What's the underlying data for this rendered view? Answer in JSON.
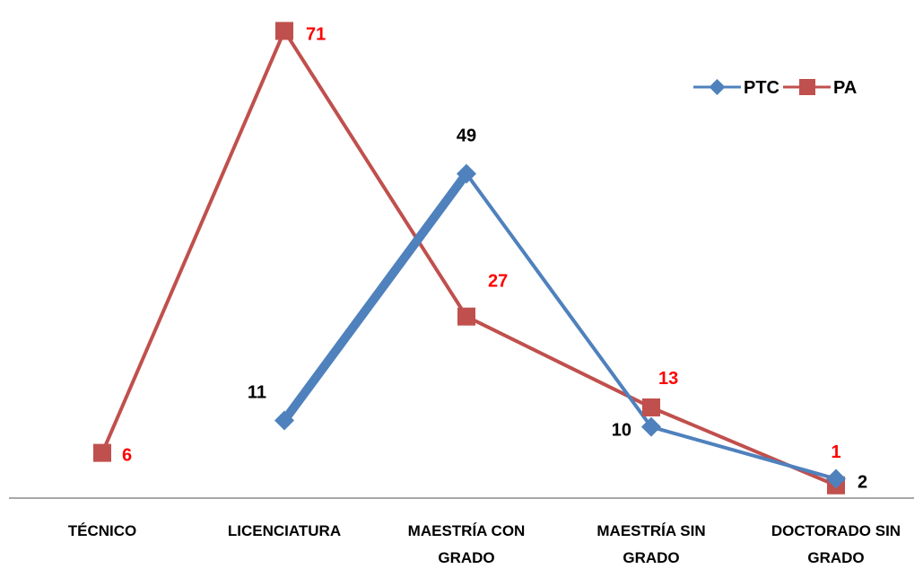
{
  "chart_data": {
    "type": "line",
    "categories": [
      "TÉCNICO",
      "LICENCIATURA",
      "MAESTRÍA CON GRADO",
      "MAESTRÍA SIN GRADO",
      "DOCTORADO SIN GRADO"
    ],
    "category_lines": [
      [
        "TÉCNICO"
      ],
      [
        "LICENCIATURA"
      ],
      [
        "MAESTRÍA CON",
        "GRADO"
      ],
      [
        "MAESTRÍA SIN",
        "GRADO"
      ],
      [
        "DOCTORADO SIN",
        "GRADO"
      ]
    ],
    "series": [
      {
        "name": "PTC",
        "values": [
          null,
          11,
          49,
          10,
          2
        ],
        "color": "#4F81BD",
        "marker": "diamond",
        "label_color": "#000000"
      },
      {
        "name": "PA",
        "values": [
          6,
          71,
          27,
          13,
          1
        ],
        "color": "#C0504D",
        "marker": "square",
        "label_color": "#FF0000"
      }
    ],
    "ylim": [
      0,
      73
    ],
    "grid": false,
    "legend_position": "top-right",
    "xlabel": "",
    "ylabel": ""
  }
}
